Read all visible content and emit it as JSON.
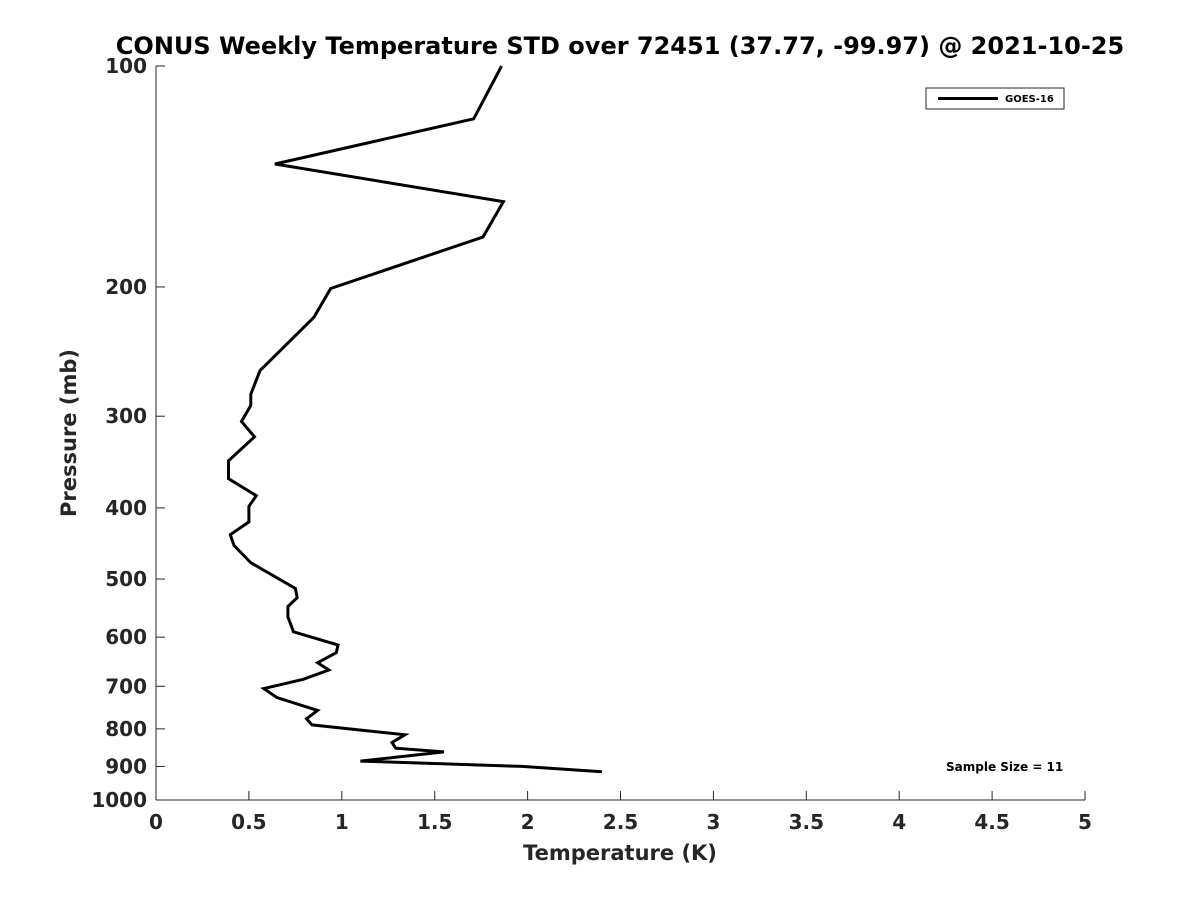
{
  "chart_data": {
    "type": "line",
    "title": "CONUS Weekly Temperature STD over 72451 (37.77, -99.97) @ 2021-10-25",
    "xlabel": "Temperature (K)",
    "ylabel": "Pressure (mb)",
    "xlim": [
      0,
      5
    ],
    "ylim": [
      100,
      1000
    ],
    "y_scale": "log",
    "y_reversed": true,
    "x_ticks": [
      0,
      0.5,
      1,
      1.5,
      2,
      2.5,
      3,
      3.5,
      4,
      4.5,
      5
    ],
    "x_tick_labels": [
      "0",
      "0.5",
      "1",
      "1.5",
      "2",
      "2.5",
      "3",
      "3.5",
      "4",
      "4.5",
      "5"
    ],
    "y_ticks": [
      100,
      200,
      300,
      400,
      500,
      600,
      700,
      800,
      900,
      1000
    ],
    "y_tick_labels": [
      "100",
      "200",
      "300",
      "400",
      "500",
      "600",
      "700",
      "800",
      "900",
      "1000"
    ],
    "grid": false,
    "legend_position": "top-right",
    "annotation": "Sample Size = 11",
    "series": [
      {
        "name": "GOES-16",
        "color": "#000000",
        "x": [
          1.86,
          1.71,
          0.64,
          1.87,
          1.76,
          0.94,
          0.85,
          0.56,
          0.51,
          0.51,
          0.46,
          0.53,
          0.39,
          0.39,
          0.54,
          0.5,
          0.5,
          0.4,
          0.42,
          0.51,
          0.75,
          0.76,
          0.71,
          0.71,
          0.74,
          0.98,
          0.97,
          0.87,
          0.93,
          0.79,
          0.58,
          0.65,
          0.87,
          0.81,
          0.84,
          1.34,
          1.27,
          1.29,
          1.55,
          1.1,
          1.97,
          2.4
        ],
        "y": [
          100,
          118,
          136,
          153,
          171,
          201,
          220,
          260,
          280,
          290,
          305,
          320,
          345,
          365,
          385,
          398,
          418,
          435,
          450,
          475,
          515,
          530,
          545,
          563,
          590,
          615,
          630,
          650,
          665,
          685,
          705,
          725,
          755,
          775,
          790,
          815,
          835,
          850,
          860,
          885,
          900,
          915
        ]
      }
    ]
  }
}
